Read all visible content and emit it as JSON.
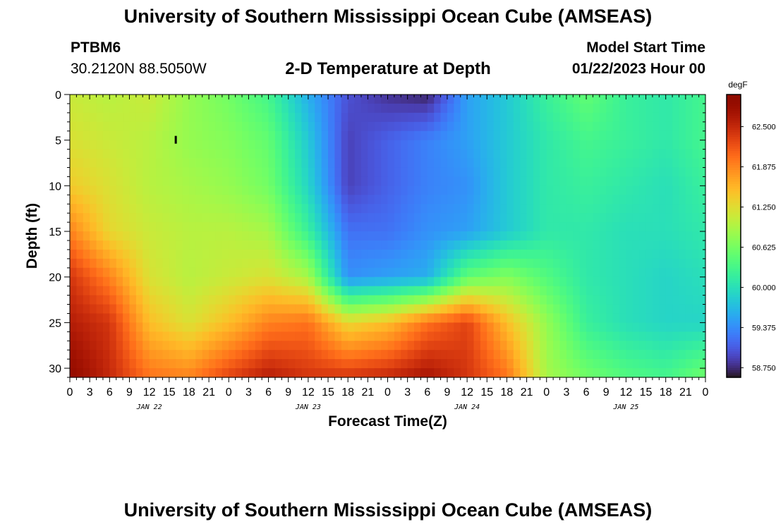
{
  "header": {
    "title": "University of Southern Mississippi Ocean Cube (AMSEAS)",
    "station": "PTBM6",
    "location": "30.2120N  88.5050W",
    "plot_title": "2-D Temperature at Depth",
    "model_start_label": "Model Start Time",
    "model_start_value": "01/22/2023 Hour 00"
  },
  "footer": {
    "title": "University of Southern Mississippi Ocean Cube (AMSEAS)"
  },
  "chart_data": {
    "type": "heatmap",
    "xlabel": "Forecast Time(Z)",
    "ylabel": "Depth (ft)",
    "x_hours": [
      0,
      96
    ],
    "x_tick_labels": [
      "0",
      "3",
      "6",
      "9",
      "12",
      "15",
      "18",
      "21",
      "0",
      "3",
      "6",
      "9",
      "12",
      "15",
      "18",
      "21",
      "0",
      "3",
      "6",
      "9",
      "12",
      "15",
      "18",
      "21",
      "0",
      "3",
      "6",
      "9",
      "12",
      "15",
      "18",
      "21",
      "0"
    ],
    "date_labels": [
      "JAN 22",
      "JAN 23",
      "JAN 24",
      "JAN 25"
    ],
    "ylim": [
      0,
      31
    ],
    "y_ticks": [
      0,
      5,
      10,
      15,
      20,
      25,
      30
    ],
    "y_inverted": true,
    "colorbar": {
      "unit": "degF",
      "range": [
        58.6,
        63.0
      ],
      "tick_labels": [
        "62.500",
        "61.875",
        "61.250",
        "60.625",
        "60.000",
        "59.375",
        "58.750"
      ],
      "tick_values": [
        62.5,
        61.875,
        61.25,
        60.625,
        60.0,
        59.375,
        58.75
      ],
      "colormap": "turbo"
    },
    "depths_ft": [
      0,
      5,
      10,
      15,
      20,
      25,
      31
    ],
    "time_hours": [
      0,
      6,
      12,
      18,
      24,
      30,
      36,
      42,
      48,
      54,
      60,
      66,
      72,
      78,
      84,
      90,
      96
    ],
    "temperature_degF": [
      [
        61.1,
        61.0,
        61.1,
        60.8,
        60.6,
        60.3,
        59.6,
        59.0,
        58.8,
        58.7,
        59.5,
        59.8,
        60.2,
        60.5,
        60.2,
        60.1,
        60.3
      ],
      [
        61.2,
        61.1,
        61.0,
        60.8,
        60.7,
        60.5,
        59.8,
        58.9,
        59.1,
        59.3,
        59.5,
        59.8,
        60.1,
        60.3,
        60.2,
        60.1,
        60.3
      ],
      [
        61.4,
        61.2,
        61.0,
        60.9,
        60.8,
        60.6,
        59.9,
        58.9,
        59.1,
        59.3,
        59.4,
        59.8,
        60.1,
        60.2,
        60.1,
        60.0,
        60.2
      ],
      [
        61.9,
        61.3,
        61.1,
        61.0,
        61.0,
        60.9,
        60.2,
        59.2,
        59.2,
        59.4,
        59.5,
        59.8,
        60.1,
        60.1,
        60.0,
        60.0,
        60.1
      ],
      [
        62.4,
        61.9,
        61.2,
        61.0,
        61.1,
        61.2,
        60.9,
        59.4,
        59.5,
        59.6,
        60.5,
        60.7,
        60.4,
        60.1,
        60.0,
        59.9,
        60.0
      ],
      [
        62.6,
        62.4,
        61.5,
        61.2,
        61.5,
        61.9,
        62.0,
        61.3,
        61.5,
        62.0,
        62.3,
        61.5,
        60.8,
        60.2,
        60.0,
        59.9,
        59.9
      ],
      [
        62.9,
        62.5,
        62.0,
        61.9,
        62.3,
        62.6,
        62.4,
        62.4,
        62.5,
        62.7,
        62.4,
        62.0,
        60.9,
        60.6,
        60.4,
        60.3,
        60.6
      ]
    ],
    "marker": {
      "hour": 16,
      "depth_ft": 5
    }
  }
}
